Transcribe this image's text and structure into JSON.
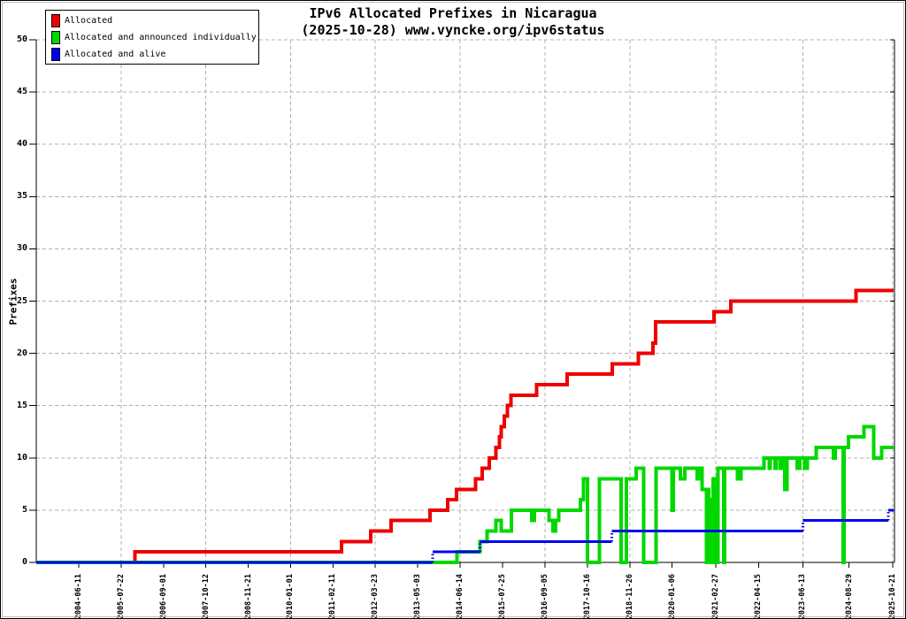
{
  "title": {
    "line1": "IPv6 Allocated Prefixes in Nicaragua",
    "line2": "(2025-10-28) www.vyncke.org/ipv6status"
  },
  "y_axis": {
    "label": "Prefixes",
    "ticks": [
      0,
      5,
      10,
      15,
      20,
      25,
      30,
      35,
      40,
      45,
      50
    ],
    "max": 50
  },
  "x_axis": {
    "tick_labels": [
      "2004-06-11",
      "2005-07-22",
      "2006-09-01",
      "2007-10-12",
      "2008-11-21",
      "2010-01-01",
      "2011-02-11",
      "2012-03-23",
      "2013-05-03",
      "2014-06-14",
      "2015-07-25",
      "2016-09-05",
      "2017-10-16",
      "2018-11-26",
      "2020-01-06",
      "2021-02-27",
      "2022-04-15",
      "2023-06-13",
      "2024-08-29",
      "2025-10-21"
    ],
    "gridline_tick_indices": [
      1,
      3,
      5,
      7,
      9,
      11,
      13,
      15,
      17,
      19
    ],
    "domain_start": "2003-04-30",
    "domain_end": "2025-11-07"
  },
  "legend": {
    "items": [
      {
        "label": "Allocated",
        "color": "#ee0000"
      },
      {
        "label": "Allocated and announced individually",
        "color": "#00d800"
      },
      {
        "label": "Allocated and alive",
        "color": "#0000ee"
      }
    ]
  },
  "colors": {
    "grid": "#b0b0b0",
    "axis": "#000000",
    "background": "#ffffff"
  },
  "chart_data": {
    "type": "line",
    "step": true,
    "x_is_time": true,
    "end_date": "2025-10-28",
    "ylim": [
      0,
      50
    ],
    "grid": true,
    "legend_position": "top-left",
    "series": [
      {
        "name": "Allocated",
        "color": "#ee0000",
        "line_width": 4,
        "riser_style": "solid",
        "points": [
          [
            "2003-04-30",
            0
          ],
          [
            "2005-12-01",
            1
          ],
          [
            "2011-05-05",
            2
          ],
          [
            "2012-02-10",
            3
          ],
          [
            "2012-08-20",
            4
          ],
          [
            "2013-08-30",
            5
          ],
          [
            "2014-02-15",
            6
          ],
          [
            "2014-05-10",
            7
          ],
          [
            "2014-11-10",
            8
          ],
          [
            "2015-01-10",
            9
          ],
          [
            "2015-03-20",
            10
          ],
          [
            "2015-05-25",
            11
          ],
          [
            "2015-06-28",
            12
          ],
          [
            "2015-07-15",
            13
          ],
          [
            "2015-08-10",
            14
          ],
          [
            "2015-09-12",
            15
          ],
          [
            "2015-10-15",
            16
          ],
          [
            "2016-06-18",
            17
          ],
          [
            "2017-04-05",
            18
          ],
          [
            "2018-06-10",
            19
          ],
          [
            "2019-02-18",
            20
          ],
          [
            "2019-07-05",
            21
          ],
          [
            "2019-07-30",
            23
          ],
          [
            "2021-02-10",
            24
          ],
          [
            "2021-07-20",
            25
          ],
          [
            "2024-11-05",
            26
          ]
        ]
      },
      {
        "name": "Allocated and announced individually",
        "color": "#00d800",
        "line_width": 4,
        "riser_style": "solid",
        "points": [
          [
            "2003-04-30",
            0
          ],
          [
            "2014-05-15",
            1
          ],
          [
            "2014-12-20",
            2
          ],
          [
            "2015-03-01",
            3
          ],
          [
            "2015-05-25",
            4
          ],
          [
            "2015-07-15",
            3
          ],
          [
            "2015-10-20",
            5
          ],
          [
            "2016-05-01",
            4
          ],
          [
            "2016-05-25",
            5
          ],
          [
            "2016-10-15",
            4
          ],
          [
            "2016-11-20",
            3
          ],
          [
            "2016-12-15",
            4
          ],
          [
            "2017-01-15",
            5
          ],
          [
            "2017-08-10",
            6
          ],
          [
            "2017-09-10",
            8
          ],
          [
            "2017-10-16",
            0
          ],
          [
            "2018-02-10",
            8
          ],
          [
            "2018-09-05",
            0
          ],
          [
            "2018-10-25",
            8
          ],
          [
            "2019-01-25",
            9
          ],
          [
            "2019-04-10",
            0
          ],
          [
            "2019-08-05",
            9
          ],
          [
            "2020-01-03",
            5
          ],
          [
            "2020-01-18",
            9
          ],
          [
            "2020-03-27",
            8
          ],
          [
            "2020-05-08",
            9
          ],
          [
            "2020-09-02",
            8
          ],
          [
            "2020-09-28",
            9
          ],
          [
            "2020-10-20",
            7
          ],
          [
            "2020-12-01",
            0
          ],
          [
            "2020-12-10",
            7
          ],
          [
            "2020-12-24",
            0
          ],
          [
            "2021-01-05",
            6
          ],
          [
            "2021-01-20",
            0
          ],
          [
            "2021-02-01",
            8
          ],
          [
            "2021-02-22",
            0
          ],
          [
            "2021-03-20",
            9
          ],
          [
            "2021-05-15",
            0
          ],
          [
            "2021-05-25",
            9
          ],
          [
            "2021-09-25",
            8
          ],
          [
            "2021-10-29",
            9
          ],
          [
            "2022-06-04",
            10
          ],
          [
            "2022-07-25",
            9
          ],
          [
            "2022-08-05",
            10
          ],
          [
            "2022-09-20",
            9
          ],
          [
            "2022-10-01",
            10
          ],
          [
            "2022-11-10",
            9
          ],
          [
            "2022-11-20",
            10
          ],
          [
            "2022-12-20",
            7
          ],
          [
            "2023-01-10",
            10
          ],
          [
            "2023-04-20",
            9
          ],
          [
            "2023-05-15",
            10
          ],
          [
            "2023-07-01",
            9
          ],
          [
            "2023-07-25",
            10
          ],
          [
            "2023-10-17",
            11
          ],
          [
            "2024-04-02",
            10
          ],
          [
            "2024-04-18",
            11
          ],
          [
            "2024-07-03",
            0
          ],
          [
            "2024-07-12",
            11
          ],
          [
            "2024-08-25",
            12
          ],
          [
            "2025-01-19",
            13
          ],
          [
            "2025-04-21",
            10
          ],
          [
            "2025-07-06",
            11
          ]
        ]
      },
      {
        "name": "Allocated and alive",
        "color": "#0000ee",
        "line_width": 3,
        "riser_style": "dotted",
        "points": [
          [
            "2003-04-30",
            0
          ],
          [
            "2013-09-23",
            1
          ],
          [
            "2014-12-20",
            2
          ],
          [
            "2018-06-08",
            3
          ],
          [
            "2023-06-13",
            4
          ],
          [
            "2025-09-10",
            5
          ]
        ]
      }
    ]
  }
}
